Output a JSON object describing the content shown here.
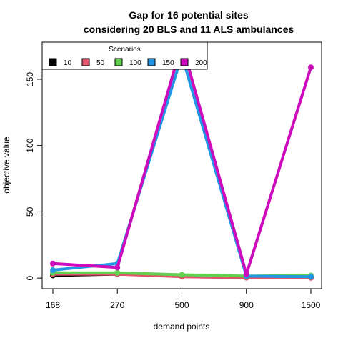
{
  "chart_data": {
    "type": "line",
    "title": "Gap for 16 potential sites",
    "subtitle": "considering 20 BLS and 11 ALS ambulances",
    "xlabel": "demand points",
    "ylabel": "objective value",
    "categories": [
      "168",
      "270",
      "500",
      "900",
      "1500"
    ],
    "ylim": [
      -8,
      178
    ],
    "yticks": [
      0,
      50,
      100,
      150
    ],
    "grid": false,
    "legend": {
      "title": "Scenarios",
      "placement": "top-left",
      "entries": [
        "10",
        "50",
        "100",
        "150",
        "200"
      ]
    },
    "series": [
      {
        "name": "10",
        "color": "#000000",
        "values": [
          2,
          3,
          2,
          0.5,
          0.5
        ]
      },
      {
        "name": "50",
        "color": "#DF536B",
        "values": [
          3,
          3,
          1,
          0.3,
          0.2
        ]
      },
      {
        "name": "100",
        "color": "#61D04F",
        "values": [
          4,
          4,
          2.5,
          1.5,
          2
        ]
      },
      {
        "name": "150",
        "color": "#2297E6",
        "values": [
          6,
          11,
          168,
          1.5,
          1
        ]
      },
      {
        "name": "200",
        "color": "#CD0BBC",
        "values": [
          11,
          8,
          177,
          3,
          159
        ]
      }
    ]
  }
}
